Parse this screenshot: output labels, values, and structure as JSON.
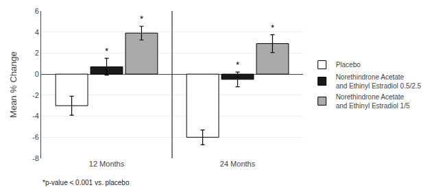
{
  "chart_data": {
    "type": "bar",
    "categories": [
      "12 Months",
      "24 Months"
    ],
    "series": [
      {
        "name": "Placebo",
        "color": "#ffffff",
        "values": [
          -3.0,
          -6.0
        ],
        "errors": [
          0.9,
          0.7
        ]
      },
      {
        "name": "Norethindrone Acetate\nand Ethinyl Estradiol 0.5/2.5",
        "color": "#1a1a1a",
        "values": [
          0.7,
          -0.5
        ],
        "errors": [
          0.8,
          0.7
        ]
      },
      {
        "name": "Norethindrone Acetate\nand Ethinyl Estradiol 1/5",
        "color": "#aaaaaa",
        "values": [
          3.9,
          2.9
        ],
        "errors": [
          0.65,
          0.85
        ]
      }
    ],
    "ylabel": "Mean % Change",
    "ylim": [
      -8,
      6
    ],
    "yticks": [
      -8,
      -6,
      -4,
      -2,
      0,
      2,
      4,
      6
    ],
    "grid": true,
    "legend": "right",
    "annotations": [
      {
        "text": "*",
        "series": "Norethindrone Acetate\nand Ethinyl Estradiol 0.5/2.5",
        "category": "12 Months"
      },
      {
        "text": "*",
        "series": "Norethindrone Acetate\nand Ethinyl Estradiol 1/5",
        "category": "12 Months"
      },
      {
        "text": "*",
        "series": "Norethindrone Acetate\nand Ethinyl Estradiol 0.5/2.5",
        "category": "24 Months"
      },
      {
        "text": "*",
        "series": "Norethindrone Acetate\nand Ethinyl Estradiol 1/5",
        "category": "24 Months"
      },
      {
        "text": "*p-value < 0.001 vs. placebo"
      }
    ]
  }
}
